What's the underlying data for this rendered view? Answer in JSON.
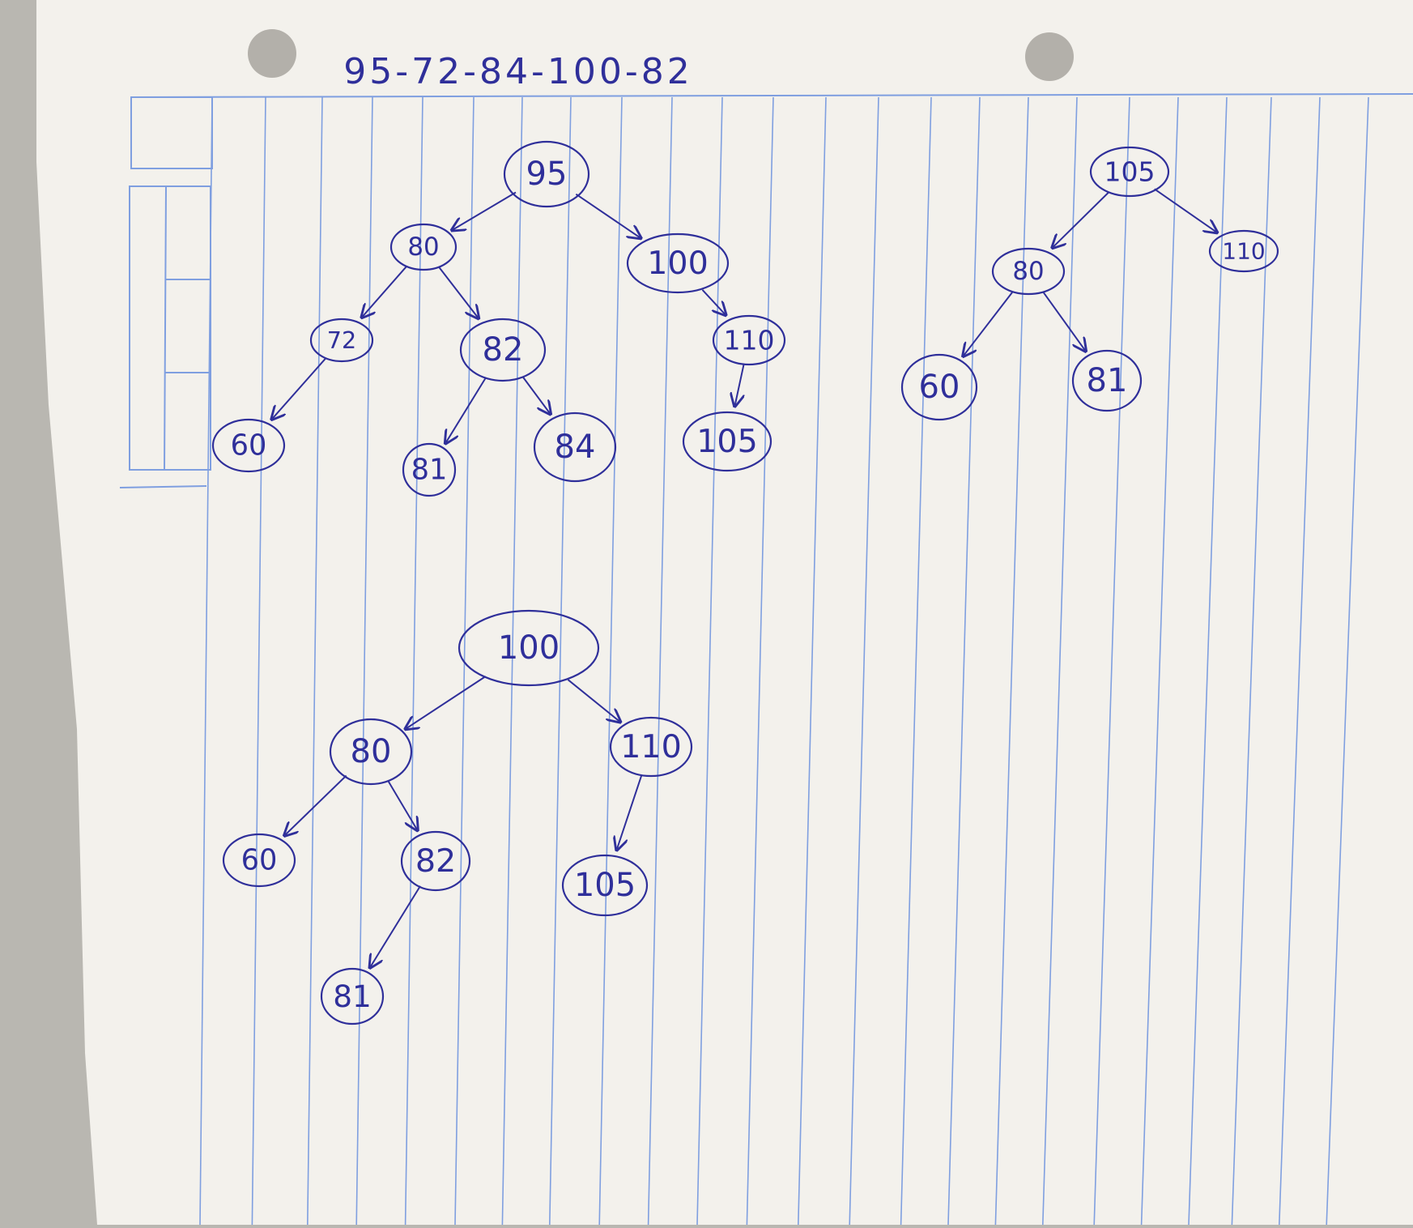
{
  "header": {
    "sequence": "95-72-84-100-82"
  },
  "colors": {
    "ink": "#2f2f9a",
    "rule": "#7f9fe0",
    "paper": "#f3f1ec",
    "background": "#b9b7b1"
  },
  "trees": [
    {
      "nodes": [
        {
          "id": "95",
          "label": "95"
        },
        {
          "id": "80",
          "label": "80"
        },
        {
          "id": "100",
          "label": "100"
        },
        {
          "id": "72",
          "label": "72"
        },
        {
          "id": "82",
          "label": "82"
        },
        {
          "id": "110",
          "label": "110"
        },
        {
          "id": "60",
          "label": "60"
        },
        {
          "id": "81",
          "label": "81"
        },
        {
          "id": "84",
          "label": "84"
        },
        {
          "id": "105",
          "label": "105"
        }
      ],
      "edges": [
        {
          "from": "95",
          "to": "80"
        },
        {
          "from": "95",
          "to": "100"
        },
        {
          "from": "80",
          "to": "72"
        },
        {
          "from": "80",
          "to": "82"
        },
        {
          "from": "100",
          "to": "110"
        },
        {
          "from": "72",
          "to": "60"
        },
        {
          "from": "82",
          "to": "81"
        },
        {
          "from": "82",
          "to": "84"
        },
        {
          "from": "110",
          "to": "105"
        }
      ]
    },
    {
      "nodes": [
        {
          "id": "105",
          "label": "105"
        },
        {
          "id": "80",
          "label": "80"
        },
        {
          "id": "110",
          "label": "110"
        },
        {
          "id": "60",
          "label": "60"
        },
        {
          "id": "81",
          "label": "81"
        }
      ],
      "edges": [
        {
          "from": "105",
          "to": "80"
        },
        {
          "from": "105",
          "to": "110"
        },
        {
          "from": "80",
          "to": "60"
        },
        {
          "from": "80",
          "to": "81"
        }
      ]
    },
    {
      "nodes": [
        {
          "id": "100",
          "label": "100"
        },
        {
          "id": "80",
          "label": "80"
        },
        {
          "id": "110",
          "label": "110"
        },
        {
          "id": "60",
          "label": "60"
        },
        {
          "id": "82",
          "label": "82"
        },
        {
          "id": "105",
          "label": "105"
        },
        {
          "id": "81",
          "label": "81"
        }
      ],
      "edges": [
        {
          "from": "100",
          "to": "80"
        },
        {
          "from": "100",
          "to": "110"
        },
        {
          "from": "80",
          "to": "60"
        },
        {
          "from": "80",
          "to": "82"
        },
        {
          "from": "110",
          "to": "105"
        },
        {
          "from": "82",
          "to": "81"
        }
      ]
    }
  ]
}
